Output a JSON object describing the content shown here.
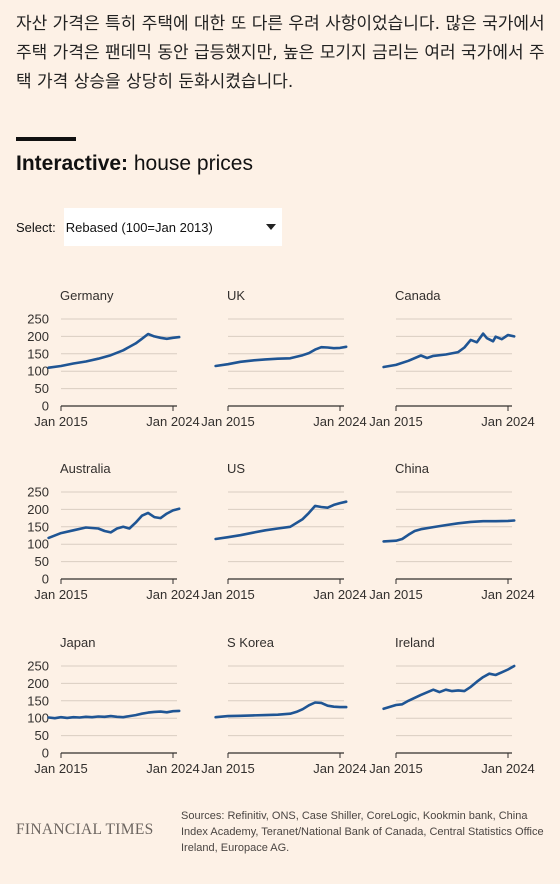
{
  "intro_text": "자산 가격은 특히 주택에 대한 또 다른 우려 사항이었습니다. 많은 국가에서 주택 가격은 팬데믹 동안 급등했지만, 높은 모기지 금리는 여러 국가에서 주택 가격 상승을 상당히 둔화시켰습니다.",
  "heading": {
    "bold": "Interactive:",
    "rest": " house prices"
  },
  "select": {
    "label": "Select:",
    "value": "Rebased (100=Jan 2013)"
  },
  "colors": {
    "line": "#1f5594",
    "grid": "#d9cdc2",
    "axis": "#33302e",
    "background": "#fdf1e6"
  },
  "chart_data": [
    {
      "type": "line",
      "title": "Germany",
      "xlabels": [
        "Jan 2015",
        "Jan 2024"
      ],
      "yticks": [
        0,
        50,
        100,
        150,
        200,
        250
      ],
      "ylim": [
        0,
        250
      ],
      "x": [
        2014.0,
        2015.0,
        2016.0,
        2017.0,
        2018.0,
        2019.0,
        2020.0,
        2021.0,
        2021.5,
        2022.0,
        2022.5,
        2023.0,
        2023.5,
        2024.0,
        2024.5
      ],
      "y": [
        110,
        115,
        122,
        128,
        136,
        146,
        160,
        180,
        193,
        207,
        200,
        196,
        193,
        196,
        198
      ]
    },
    {
      "type": "line",
      "title": "UK",
      "xlabels": [
        "Jan 2015",
        "Jan 2024"
      ],
      "yticks": [
        0,
        50,
        100,
        150,
        200,
        250
      ],
      "ylim": [
        0,
        250
      ],
      "x": [
        2014.0,
        2015.0,
        2016.0,
        2017.0,
        2018.0,
        2019.0,
        2020.0,
        2021.0,
        2021.5,
        2022.0,
        2022.5,
        2023.0,
        2023.5,
        2024.0,
        2024.5
      ],
      "y": [
        115,
        120,
        127,
        131,
        134,
        136,
        137,
        146,
        152,
        162,
        169,
        168,
        166,
        167,
        170
      ]
    },
    {
      "type": "line",
      "title": "Canada",
      "xlabels": [
        "Jan 2015",
        "Jan 2024"
      ],
      "yticks": [
        0,
        50,
        100,
        150,
        200,
        250
      ],
      "ylim": [
        0,
        250
      ],
      "x": [
        2014.0,
        2015.0,
        2016.0,
        2017.0,
        2017.5,
        2018.0,
        2019.0,
        2020.0,
        2020.5,
        2021.0,
        2021.5,
        2022.0,
        2022.3,
        2022.8,
        2023.0,
        2023.5,
        2024.0,
        2024.5
      ],
      "y": [
        112,
        118,
        130,
        145,
        138,
        144,
        148,
        155,
        168,
        190,
        183,
        208,
        195,
        186,
        199,
        192,
        204,
        200
      ]
    },
    {
      "type": "line",
      "title": "Australia",
      "xlabels": [
        "Jan 2015",
        "Jan 2024"
      ],
      "yticks": [
        0,
        50,
        100,
        150,
        200,
        250
      ],
      "ylim": [
        0,
        250
      ],
      "x": [
        2014.0,
        2015.0,
        2016.0,
        2017.0,
        2018.0,
        2018.5,
        2019.0,
        2019.5,
        2020.0,
        2020.5,
        2021.0,
        2021.5,
        2022.0,
        2022.5,
        2023.0,
        2023.5,
        2024.0,
        2024.5
      ],
      "y": [
        118,
        132,
        140,
        148,
        145,
        138,
        134,
        145,
        150,
        145,
        162,
        182,
        190,
        178,
        175,
        188,
        197,
        202
      ]
    },
    {
      "type": "line",
      "title": "US",
      "xlabels": [
        "Jan 2015",
        "Jan 2024"
      ],
      "yticks": [
        0,
        50,
        100,
        150,
        200,
        250
      ],
      "ylim": [
        0,
        250
      ],
      "x": [
        2014.0,
        2015.0,
        2016.0,
        2017.0,
        2018.0,
        2019.0,
        2020.0,
        2021.0,
        2021.5,
        2022.0,
        2022.5,
        2023.0,
        2023.5,
        2024.0,
        2024.5
      ],
      "y": [
        115,
        120,
        126,
        133,
        140,
        145,
        150,
        172,
        190,
        210,
        207,
        205,
        213,
        218,
        222
      ]
    },
    {
      "type": "line",
      "title": "China",
      "xlabels": [
        "Jan 2015",
        "Jan 2024"
      ],
      "yticks": [
        0,
        50,
        100,
        150,
        200,
        250
      ],
      "ylim": [
        0,
        250
      ],
      "x": [
        2014.0,
        2015.0,
        2015.5,
        2016.0,
        2016.5,
        2017.0,
        2018.0,
        2019.0,
        2020.0,
        2021.0,
        2022.0,
        2023.0,
        2024.0,
        2024.5
      ],
      "y": [
        108,
        110,
        115,
        127,
        138,
        143,
        149,
        155,
        160,
        164,
        166,
        166,
        167,
        168
      ]
    },
    {
      "type": "line",
      "title": "Japan",
      "xlabels": [
        "Jan 2015",
        "Jan 2024"
      ],
      "yticks": [
        0,
        50,
        100,
        150,
        200,
        250
      ],
      "ylim": [
        0,
        250
      ],
      "x": [
        2014.0,
        2014.5,
        2015.0,
        2015.5,
        2016.0,
        2016.5,
        2017.0,
        2017.5,
        2018.0,
        2018.5,
        2019.0,
        2019.5,
        2020.0,
        2020.5,
        2021.0,
        2021.5,
        2022.0,
        2022.5,
        2023.0,
        2023.5,
        2024.0,
        2024.5
      ],
      "y": [
        102,
        100,
        103,
        101,
        103,
        102,
        104,
        103,
        105,
        104,
        106,
        104,
        103,
        106,
        109,
        113,
        116,
        118,
        119,
        117,
        120,
        121
      ]
    },
    {
      "type": "line",
      "title": "S Korea",
      "xlabels": [
        "Jan 2015",
        "Jan 2024"
      ],
      "yticks": [
        0,
        50,
        100,
        150,
        200,
        250
      ],
      "ylim": [
        0,
        250
      ],
      "x": [
        2014.0,
        2015.0,
        2016.0,
        2017.0,
        2018.0,
        2019.0,
        2020.0,
        2020.5,
        2021.0,
        2021.5,
        2022.0,
        2022.5,
        2023.0,
        2023.5,
        2024.0,
        2024.5
      ],
      "y": [
        103,
        106,
        107,
        108,
        109,
        110,
        113,
        118,
        126,
        137,
        145,
        144,
        136,
        133,
        132,
        132
      ]
    },
    {
      "type": "line",
      "title": "Ireland",
      "xlabels": [
        "Jan 2015",
        "Jan 2024"
      ],
      "yticks": [
        0,
        50,
        100,
        150,
        200,
        250
      ],
      "ylim": [
        0,
        250
      ],
      "x": [
        2014.0,
        2015.0,
        2015.5,
        2016.0,
        2017.0,
        2018.0,
        2018.5,
        2019.0,
        2019.5,
        2020.0,
        2020.5,
        2021.0,
        2021.5,
        2022.0,
        2022.5,
        2023.0,
        2023.5,
        2024.0,
        2024.5
      ],
      "y": [
        127,
        138,
        140,
        150,
        167,
        182,
        175,
        182,
        178,
        180,
        178,
        190,
        205,
        218,
        228,
        224,
        232,
        240,
        250
      ]
    }
  ],
  "footer": {
    "logo": "FINANCIAL TIMES",
    "sources": "Sources: Refinitiv, ONS, Case Shiller, CoreLogic, Kookmin bank, China Index Academy, Teranet/National Bank of Canada, Central Statistics Office Ireland, Europace AG."
  }
}
